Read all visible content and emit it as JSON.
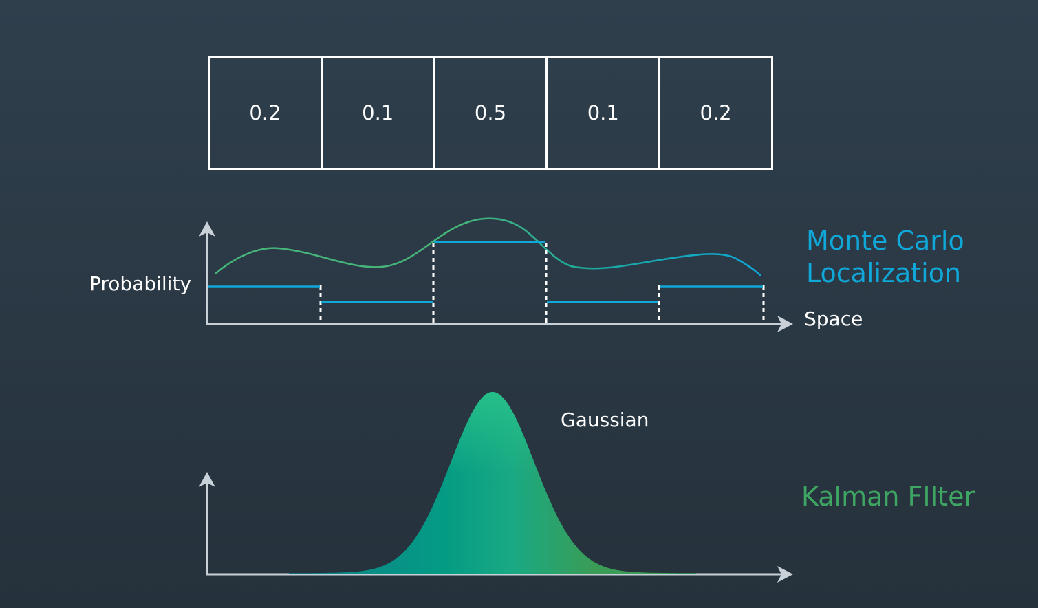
{
  "grid": {
    "cells": [
      "0.2",
      "0.1",
      "0.5",
      "0.1",
      "0.2"
    ]
  },
  "monte_carlo": {
    "y_label": "Probability",
    "x_label": "Space",
    "title_line1": "Monte Carlo",
    "title_line2": "Localization",
    "step_values": [
      0.2,
      0.1,
      0.5,
      0.1,
      0.2
    ]
  },
  "kalman": {
    "curve_label": "Gaussian",
    "title": "Kalman FIlter"
  },
  "colors": {
    "background": "#2c3a46",
    "axis": "#c8d0d8",
    "step_line": "#0fa8d8",
    "curve": "#46b57a",
    "gaussian_fill_top": "#27c089",
    "gaussian_fill_mid": "#049b84",
    "gaussian_fill_side": "#3a9c56",
    "monte_carlo_text": "#0fa8d8",
    "kalman_text": "#3fa562"
  }
}
